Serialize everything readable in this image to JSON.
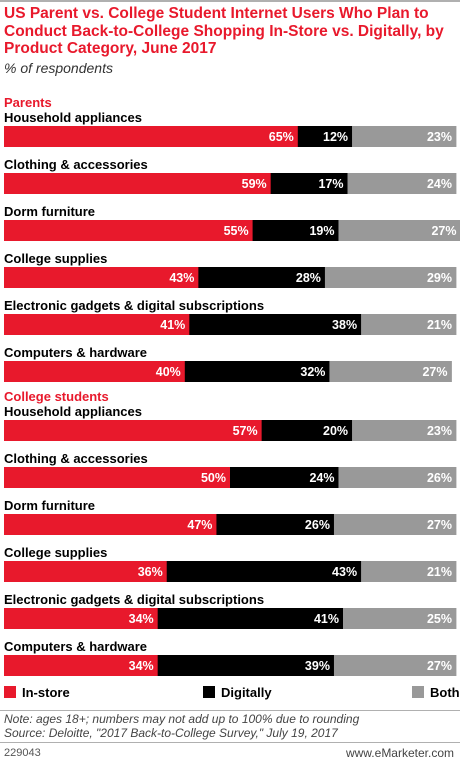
{
  "header": {
    "title": "US Parent vs. College Student Internet Users Who Plan to Conduct Back-to-College Shopping In-Store vs. Digitally, by Product Category, June 2017",
    "subtitle": "% of respondents"
  },
  "colors": {
    "in_store": "#e8192c",
    "digitally": "#000000",
    "both": "#999999",
    "accent": "#e8192c"
  },
  "chart_data": {
    "type": "bar",
    "stacked": true,
    "orientation": "horizontal",
    "xlim": [
      0,
      100
    ],
    "legend": {
      "position": "bottom",
      "entries": [
        "In-store",
        "Digitally",
        "Both"
      ]
    },
    "groups": [
      {
        "name": "Parents",
        "categories": [
          "Household appliances",
          "Clothing & accessories",
          "Dorm furniture",
          "College supplies",
          "Electronic gadgets & digital subscriptions",
          "Computers & hardware"
        ],
        "series": [
          {
            "name": "In-store",
            "values": [
              65,
              59,
              55,
              43,
              41,
              40
            ]
          },
          {
            "name": "Digitally",
            "values": [
              12,
              17,
              19,
              28,
              38,
              32
            ]
          },
          {
            "name": "Both",
            "values": [
              23,
              24,
              27,
              29,
              21,
              27
            ]
          }
        ]
      },
      {
        "name": "College students",
        "categories": [
          "Household appliances",
          "Clothing & accessories",
          "Dorm furniture",
          "College supplies",
          "Electronic gadgets & digital subscriptions",
          "Computers & hardware"
        ],
        "series": [
          {
            "name": "In-store",
            "values": [
              57,
              50,
              47,
              36,
              34,
              34
            ]
          },
          {
            "name": "Digitally",
            "values": [
              20,
              24,
              26,
              43,
              41,
              39
            ]
          },
          {
            "name": "Both",
            "values": [
              23,
              26,
              27,
              21,
              25,
              27
            ]
          }
        ]
      }
    ]
  },
  "footer": {
    "note": "Note: ages 18+; numbers may not add up to 100% due to rounding",
    "source": "Source: Deloitte, \"2017 Back-to-College Survey,\" July 19, 2017",
    "chart_id": "229043",
    "brand": "www.eMarketer.com"
  }
}
